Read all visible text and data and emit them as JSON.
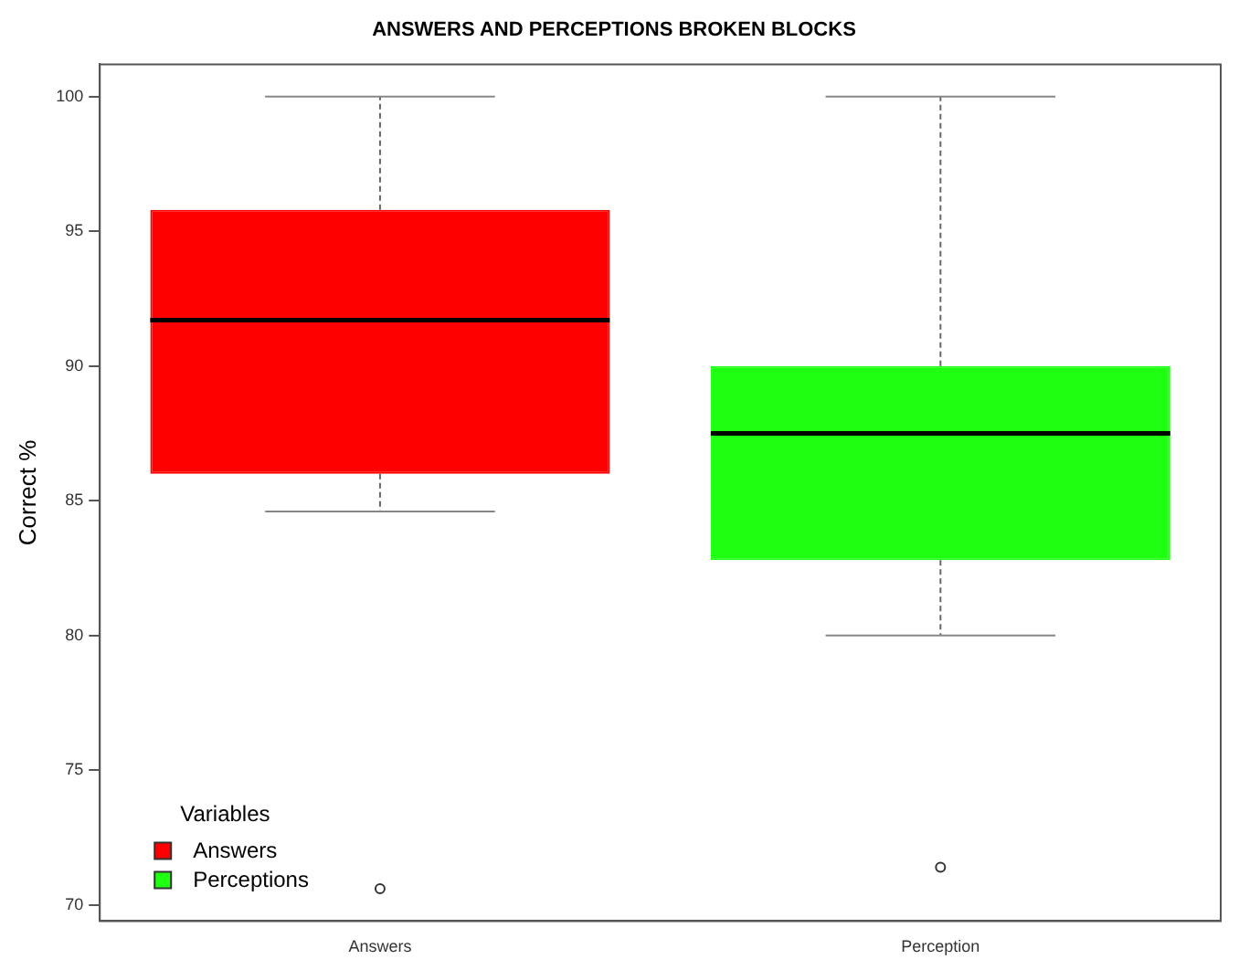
{
  "chart_data": {
    "type": "box",
    "title": "ANSWERS AND PERCEPTIONS BROKEN BLOCKS",
    "ylabel": "Correct %",
    "legend_title": "Variables",
    "legend": "bottom left",
    "grid": false,
    "categories": [
      "Answers",
      "Perception"
    ],
    "series": [
      {
        "name": "Answers",
        "color": "#ff0000",
        "boxes": [
          {
            "low": 84.6,
            "q1": 86.0,
            "median": 91.7,
            "q3": 95.8,
            "high": 100,
            "outliers": [
              70.6
            ]
          },
          null
        ]
      },
      {
        "name": "Perceptions",
        "color": "#1eff12",
        "boxes": [
          null,
          {
            "low": 80,
            "q1": 82.8,
            "median": 87.5,
            "q3": 90.0,
            "high": 100,
            "outliers": [
              71.4
            ]
          }
        ]
      }
    ],
    "ylim": [
      69.4,
      101.2
    ],
    "yticks": [
      70,
      75,
      80,
      85,
      90,
      95,
      100
    ]
  }
}
